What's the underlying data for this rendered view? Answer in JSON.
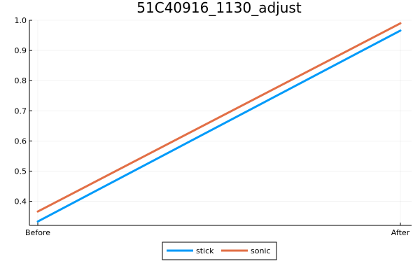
{
  "chart_data": {
    "type": "line",
    "title": "51C40916_1130_adjust",
    "xlabel": "",
    "ylabel": "",
    "categories": [
      "Before",
      "After"
    ],
    "ylim": [
      0.32,
      1.0
    ],
    "yticks": [
      0.4,
      0.5,
      0.6,
      0.7,
      0.8,
      0.9,
      1.0
    ],
    "ytick_labels": [
      "0.4",
      "0.5",
      "0.6",
      "0.7",
      "0.8",
      "0.9",
      "1.0"
    ],
    "grid": true,
    "legend_position": "bottom-center",
    "series": [
      {
        "name": "stick",
        "color": "#009af9",
        "values": [
          0.333,
          0.966
        ]
      },
      {
        "name": "sonic",
        "color": "#e26f46",
        "values": [
          0.366,
          0.99
        ]
      }
    ]
  }
}
